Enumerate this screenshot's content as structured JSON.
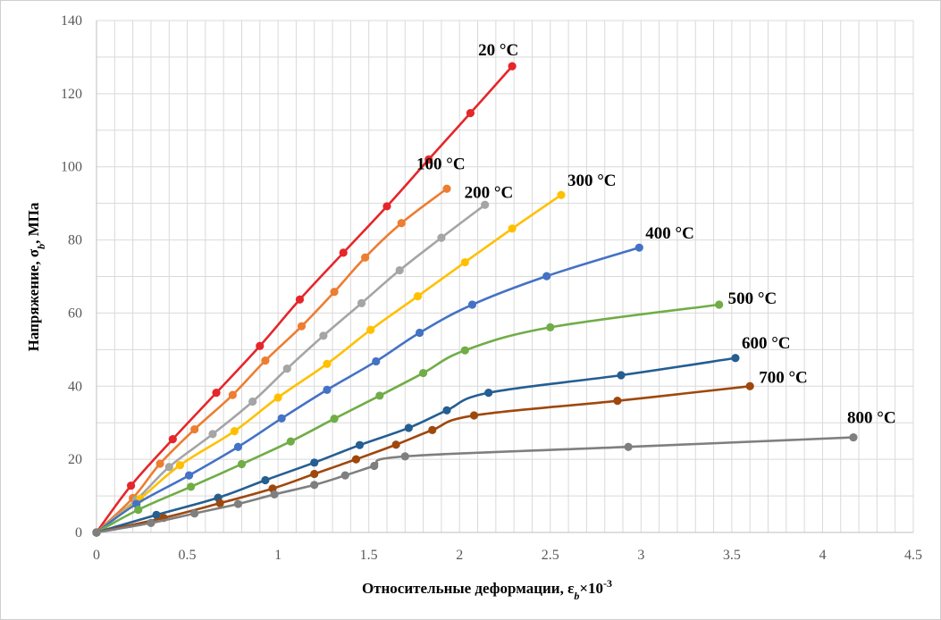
{
  "chart_data": {
    "type": "line",
    "xlabel": {
      "text": "Относительные деформации, ε",
      "sub": "b",
      "tail": "×10",
      "sup": "-3"
    },
    "ylabel": {
      "text": "Напряжение, σ",
      "sub": "b",
      "tail": ", МПа"
    },
    "xlim": [
      0,
      4.5
    ],
    "ylim": [
      0,
      140
    ],
    "x_ticks": [
      "0",
      "0.5",
      "1",
      "1.5",
      "2",
      "2.5",
      "3",
      "3.5",
      "4",
      "4.5"
    ],
    "y_ticks": [
      "0",
      "20",
      "40",
      "60",
      "80",
      "100",
      "120",
      "140"
    ],
    "grid": true,
    "series": [
      {
        "name": "20 °C",
        "color": "#e5262a",
        "points": [
          [
            0,
            0
          ],
          [
            0.19,
            12.8
          ],
          [
            0.42,
            25.5
          ],
          [
            0.66,
            38.2
          ],
          [
            0.9,
            51
          ],
          [
            1.12,
            63.7
          ],
          [
            1.36,
            76.5
          ],
          [
            1.6,
            89.2
          ],
          [
            1.83,
            102
          ],
          [
            2.06,
            114.7
          ],
          [
            2.29,
            127.5
          ]
        ]
      },
      {
        "name": "100 °C",
        "color": "#ed7d31",
        "points": [
          [
            0,
            0
          ],
          [
            0.2,
            9.4
          ],
          [
            0.35,
            18.8
          ],
          [
            0.54,
            28.2
          ],
          [
            0.75,
            37.6
          ],
          [
            0.93,
            47
          ],
          [
            1.13,
            56.4
          ],
          [
            1.31,
            65.8
          ],
          [
            1.48,
            75.2
          ],
          [
            1.68,
            84.6
          ],
          [
            1.93,
            94
          ]
        ]
      },
      {
        "name": "200 °C",
        "color": "#a5a5a5",
        "points": [
          [
            0,
            0
          ],
          [
            0.22,
            9
          ],
          [
            0.4,
            17.9
          ],
          [
            0.64,
            26.9
          ],
          [
            0.86,
            35.8
          ],
          [
            1.05,
            44.8
          ],
          [
            1.25,
            53.8
          ],
          [
            1.46,
            62.7
          ],
          [
            1.67,
            71.7
          ],
          [
            1.9,
            80.6
          ],
          [
            2.14,
            89.6
          ]
        ]
      },
      {
        "name": "300 °C",
        "color": "#ffc000",
        "points": [
          [
            0,
            0
          ],
          [
            0.24,
            9.2
          ],
          [
            0.46,
            18.4
          ],
          [
            0.76,
            27.7
          ],
          [
            1.0,
            36.9
          ],
          [
            1.27,
            46.1
          ],
          [
            1.51,
            55.4
          ],
          [
            1.77,
            64.6
          ],
          [
            2.03,
            73.9
          ],
          [
            2.29,
            83.1
          ],
          [
            2.56,
            92.3
          ]
        ]
      },
      {
        "name": "400 °C",
        "color": "#4472c4",
        "points": [
          [
            0,
            0
          ],
          [
            0.22,
            7.8
          ],
          [
            0.51,
            15.6
          ],
          [
            0.78,
            23.4
          ],
          [
            1.02,
            31.2
          ],
          [
            1.27,
            39
          ],
          [
            1.54,
            46.8
          ],
          [
            1.78,
            54.6
          ],
          [
            2.07,
            62.3
          ],
          [
            2.48,
            70.1
          ],
          [
            2.99,
            77.9
          ]
        ]
      },
      {
        "name": "500 °C",
        "color": "#70ad47",
        "points": [
          [
            0,
            0
          ],
          [
            0.23,
            6.2
          ],
          [
            0.52,
            12.5
          ],
          [
            0.8,
            18.7
          ],
          [
            1.07,
            24.9
          ],
          [
            1.31,
            31.1
          ],
          [
            1.56,
            37.4
          ],
          [
            1.8,
            43.6
          ],
          [
            2.03,
            49.8
          ],
          [
            2.5,
            56.1
          ],
          [
            3.43,
            62.3
          ]
        ]
      },
      {
        "name": "600 °C",
        "color": "#255e91",
        "points": [
          [
            0,
            0
          ],
          [
            0.33,
            4.8
          ],
          [
            0.67,
            9.5
          ],
          [
            0.93,
            14.3
          ],
          [
            1.2,
            19.1
          ],
          [
            1.45,
            23.9
          ],
          [
            1.72,
            28.6
          ],
          [
            1.93,
            33.4
          ],
          [
            2.16,
            38.2
          ],
          [
            2.89,
            43
          ],
          [
            3.52,
            47.7
          ]
        ]
      },
      {
        "name": "700 °C",
        "color": "#9e480e",
        "points": [
          [
            0,
            0
          ],
          [
            0.37,
            4
          ],
          [
            0.68,
            8
          ],
          [
            0.97,
            12
          ],
          [
            1.2,
            16
          ],
          [
            1.43,
            20
          ],
          [
            1.65,
            24
          ],
          [
            1.85,
            28
          ],
          [
            2.08,
            32
          ],
          [
            2.87,
            36
          ],
          [
            3.6,
            40
          ]
        ]
      },
      {
        "name": "800 °C",
        "color": "#7f7f7f",
        "points": [
          [
            0,
            0
          ],
          [
            0.3,
            2.6
          ],
          [
            0.54,
            5.2
          ],
          [
            0.78,
            7.8
          ],
          [
            0.98,
            10.4
          ],
          [
            1.2,
            13
          ],
          [
            1.37,
            15.6
          ],
          [
            1.53,
            18.2
          ],
          [
            1.7,
            20.8
          ],
          [
            2.93,
            23.4
          ],
          [
            4.17,
            26
          ]
        ]
      }
    ]
  }
}
